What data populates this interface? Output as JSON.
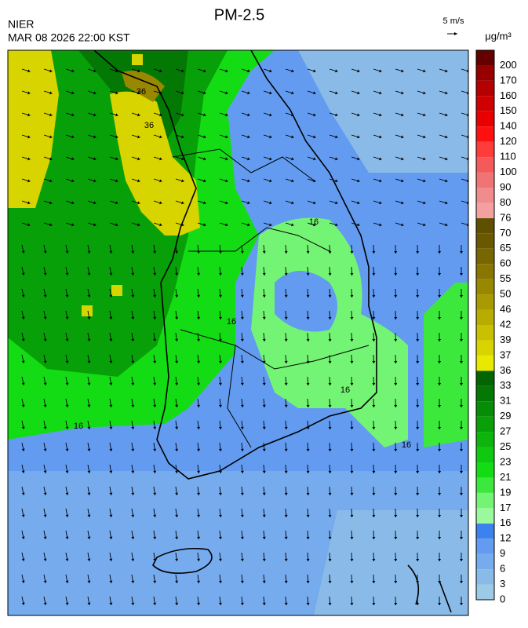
{
  "header": {
    "title": "PM-2.5",
    "agency": "NIER",
    "datetime": "MAR 08 2026 22:00 KST"
  },
  "wind_legend": {
    "label": "5 m/s"
  },
  "colorbar": {
    "unit": "μg/m³",
    "levels": [
      {
        "label": "0",
        "color": "#9ccbe8"
      },
      {
        "label": "3",
        "color": "#8abbe8"
      },
      {
        "label": "6",
        "color": "#76abee"
      },
      {
        "label": "9",
        "color": "#629bf0"
      },
      {
        "label": "12",
        "color": "#3c82ee"
      },
      {
        "label": "16",
        "color": "#9cf89c"
      },
      {
        "label": "17",
        "color": "#74f474"
      },
      {
        "label": "19",
        "color": "#3ce83c"
      },
      {
        "label": "21",
        "color": "#14dc14"
      },
      {
        "label": "23",
        "color": "#10c810"
      },
      {
        "label": "25",
        "color": "#0cb40c"
      },
      {
        "label": "27",
        "color": "#08a008"
      },
      {
        "label": "29",
        "color": "#068c06"
      },
      {
        "label": "31",
        "color": "#047804"
      },
      {
        "label": "33",
        "color": "#026402"
      },
      {
        "label": "36",
        "color": "#e8e800"
      },
      {
        "label": "37",
        "color": "#d8d400"
      },
      {
        "label": "39",
        "color": "#c8c000"
      },
      {
        "label": "42",
        "color": "#b8ac00"
      },
      {
        "label": "46",
        "color": "#a89a00"
      },
      {
        "label": "50",
        "color": "#988800"
      },
      {
        "label": "55",
        "color": "#887600"
      },
      {
        "label": "60",
        "color": "#786600"
      },
      {
        "label": "65",
        "color": "#6a5800"
      },
      {
        "label": "70",
        "color": "#5e5000"
      },
      {
        "label": "76",
        "color": "#f4a0a0"
      },
      {
        "label": "80",
        "color": "#f08c8c"
      },
      {
        "label": "90",
        "color": "#f07474"
      },
      {
        "label": "100",
        "color": "#f45a5a"
      },
      {
        "label": "110",
        "color": "#ff3c3c"
      },
      {
        "label": "120",
        "color": "#ff1010"
      },
      {
        "label": "140",
        "color": "#e80000"
      },
      {
        "label": "150",
        "color": "#d00000"
      },
      {
        "label": "160",
        "color": "#b40000"
      },
      {
        "label": "170",
        "color": "#980000"
      },
      {
        "label": "200",
        "color": "#640000"
      }
    ]
  },
  "map": {
    "contour_labels": [
      "36",
      "36",
      "16",
      "16",
      "16",
      "16",
      "16"
    ]
  }
}
